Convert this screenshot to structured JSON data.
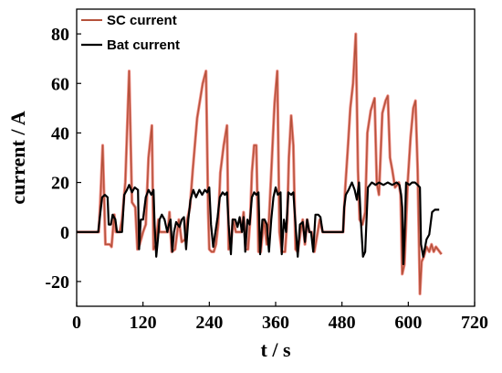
{
  "chart_data": {
    "type": "line",
    "xlabel": "t / s",
    "ylabel": "current / A",
    "xlim": [
      0,
      720
    ],
    "ylim": [
      -30,
      90
    ],
    "x_ticks": [
      "0",
      "120",
      "240",
      "360",
      "480",
      "600",
      "720"
    ],
    "y_ticks": [
      "-20",
      "0",
      "20",
      "40",
      "60",
      "80"
    ],
    "y_tick_values": [
      -20,
      0,
      20,
      40,
      60,
      80
    ],
    "x_tick_values": [
      0,
      120,
      240,
      360,
      480,
      600,
      720
    ],
    "grid": false,
    "legend_position": "top-left",
    "series": [
      {
        "name": "SC current",
        "color": "#b5523b",
        "glow_color": "#e8463a",
        "points": [
          [
            0,
            0
          ],
          [
            40,
            0
          ],
          [
            43,
            13
          ],
          [
            47,
            35
          ],
          [
            52,
            -5
          ],
          [
            56,
            -5
          ],
          [
            60,
            -5
          ],
          [
            63,
            -6
          ],
          [
            68,
            7
          ],
          [
            71,
            0
          ],
          [
            78,
            0
          ],
          [
            82,
            5
          ],
          [
            88,
            20
          ],
          [
            95,
            65
          ],
          [
            100,
            12
          ],
          [
            106,
            10
          ],
          [
            110,
            -7
          ],
          [
            114,
            -5
          ],
          [
            120,
            0
          ],
          [
            125,
            3
          ],
          [
            130,
            30
          ],
          [
            136,
            43
          ],
          [
            139,
            -7
          ],
          [
            143,
            -5
          ],
          [
            148,
            5
          ],
          [
            150,
            0
          ],
          [
            165,
            0
          ],
          [
            168,
            8
          ],
          [
            172,
            -8
          ],
          [
            178,
            -7
          ],
          [
            182,
            0
          ],
          [
            185,
            5
          ],
          [
            190,
            -4
          ],
          [
            196,
            -3
          ],
          [
            200,
            5
          ],
          [
            205,
            10
          ],
          [
            210,
            25
          ],
          [
            218,
            46
          ],
          [
            228,
            60
          ],
          [
            234,
            65
          ],
          [
            238,
            8
          ],
          [
            240,
            -7
          ],
          [
            244,
            -8
          ],
          [
            248,
            -8
          ],
          [
            252,
            -5
          ],
          [
            256,
            3
          ],
          [
            260,
            24
          ],
          [
            266,
            35
          ],
          [
            272,
            43
          ],
          [
            275,
            -7
          ],
          [
            279,
            -5
          ],
          [
            283,
            5
          ],
          [
            288,
            0
          ],
          [
            298,
            0
          ],
          [
            302,
            8
          ],
          [
            306,
            -7
          ],
          [
            310,
            -7
          ],
          [
            314,
            5
          ],
          [
            317,
            24
          ],
          [
            321,
            35
          ],
          [
            325,
            35
          ],
          [
            329,
            -8
          ],
          [
            333,
            -8
          ],
          [
            339,
            5
          ],
          [
            344,
            -5
          ],
          [
            348,
            5
          ],
          [
            352,
            24
          ],
          [
            358,
            52
          ],
          [
            363,
            65
          ],
          [
            367,
            0
          ],
          [
            371,
            -8
          ],
          [
            377,
            -8
          ],
          [
            381,
            5
          ],
          [
            384,
            30
          ],
          [
            388,
            47
          ],
          [
            392,
            35
          ],
          [
            396,
            -7
          ],
          [
            400,
            -8
          ],
          [
            405,
            0
          ],
          [
            409,
            5
          ],
          [
            413,
            -5
          ],
          [
            417,
            5
          ],
          [
            421,
            0
          ],
          [
            425,
            0
          ],
          [
            430,
            -8
          ],
          [
            440,
            5
          ],
          [
            445,
            0
          ],
          [
            482,
            0
          ],
          [
            486,
            18
          ],
          [
            491,
            35
          ],
          [
            495,
            50
          ],
          [
            500,
            60
          ],
          [
            505,
            80
          ],
          [
            509,
            25
          ],
          [
            512,
            5
          ],
          [
            517,
            3
          ],
          [
            522,
            8
          ],
          [
            526,
            40
          ],
          [
            532,
            49
          ],
          [
            539,
            54
          ],
          [
            543,
            20
          ],
          [
            547,
            15
          ],
          [
            553,
            48
          ],
          [
            559,
            53
          ],
          [
            563,
            55
          ],
          [
            567,
            30
          ],
          [
            571,
            25
          ],
          [
            576,
            18
          ],
          [
            583,
            20
          ],
          [
            586,
            15
          ],
          [
            589,
            -17
          ],
          [
            593,
            -13
          ],
          [
            599,
            20
          ],
          [
            604,
            38
          ],
          [
            609,
            50
          ],
          [
            613,
            53
          ],
          [
            617,
            25
          ],
          [
            621,
            -25
          ],
          [
            624,
            -12
          ],
          [
            628,
            -10
          ],
          [
            633,
            -6
          ],
          [
            638,
            -8
          ],
          [
            642,
            -5
          ],
          [
            646,
            -8
          ],
          [
            650,
            -6
          ],
          [
            660,
            -9
          ]
        ]
      },
      {
        "name": "Bat current",
        "color": "#000000",
        "points": [
          [
            0,
            0
          ],
          [
            39,
            0
          ],
          [
            41,
            4
          ],
          [
            46,
            14
          ],
          [
            51,
            15
          ],
          [
            56,
            14
          ],
          [
            58,
            3
          ],
          [
            62,
            3
          ],
          [
            65,
            7
          ],
          [
            70,
            5
          ],
          [
            73,
            0
          ],
          [
            82,
            0
          ],
          [
            86,
            15
          ],
          [
            91,
            17
          ],
          [
            95,
            19
          ],
          [
            100,
            16
          ],
          [
            105,
            18
          ],
          [
            111,
            17
          ],
          [
            113,
            -7
          ],
          [
            116,
            5
          ],
          [
            120,
            5
          ],
          [
            125,
            14
          ],
          [
            130,
            17
          ],
          [
            135,
            15
          ],
          [
            139,
            17
          ],
          [
            141,
            3
          ],
          [
            144,
            -10
          ],
          [
            147,
            -3
          ],
          [
            150,
            5
          ],
          [
            154,
            7
          ],
          [
            159,
            5
          ],
          [
            164,
            0
          ],
          [
            167,
            3
          ],
          [
            170,
            5
          ],
          [
            173,
            -8
          ],
          [
            176,
            0
          ],
          [
            180,
            4
          ],
          [
            186,
            2
          ],
          [
            190,
            5
          ],
          [
            194,
            6
          ],
          [
            198,
            -7
          ],
          [
            202,
            5
          ],
          [
            206,
            13
          ],
          [
            211,
            17
          ],
          [
            216,
            14
          ],
          [
            222,
            17
          ],
          [
            227,
            15
          ],
          [
            232,
            17
          ],
          [
            236,
            16
          ],
          [
            240,
            18
          ],
          [
            243,
            3
          ],
          [
            247,
            -6
          ],
          [
            251,
            0
          ],
          [
            255,
            6
          ],
          [
            259,
            14
          ],
          [
            264,
            16
          ],
          [
            268,
            15
          ],
          [
            272,
            16
          ],
          [
            275,
            3
          ],
          [
            279,
            -9
          ],
          [
            282,
            5
          ],
          [
            287,
            5
          ],
          [
            291,
            2
          ],
          [
            295,
            6
          ],
          [
            299,
            0
          ],
          [
            302,
            6
          ],
          [
            305,
            -8
          ],
          [
            309,
            5
          ],
          [
            313,
            3
          ],
          [
            317,
            14
          ],
          [
            321,
            16
          ],
          [
            325,
            15
          ],
          [
            329,
            16
          ],
          [
            332,
            -9
          ],
          [
            336,
            5
          ],
          [
            340,
            5
          ],
          [
            344,
            3
          ],
          [
            348,
            -8
          ],
          [
            352,
            5
          ],
          [
            356,
            14
          ],
          [
            360,
            18
          ],
          [
            364,
            15
          ],
          [
            369,
            16
          ],
          [
            371,
            -9
          ],
          [
            375,
            5
          ],
          [
            379,
            0
          ],
          [
            383,
            16
          ],
          [
            388,
            15
          ],
          [
            392,
            16
          ],
          [
            396,
            3
          ],
          [
            400,
            -10
          ],
          [
            404,
            3
          ],
          [
            409,
            4
          ],
          [
            413,
            -4
          ],
          [
            417,
            5
          ],
          [
            421,
            0
          ],
          [
            424,
            0
          ],
          [
            428,
            -8
          ],
          [
            432,
            7
          ],
          [
            437,
            7
          ],
          [
            441,
            6
          ],
          [
            445,
            0
          ],
          [
            482,
            0
          ],
          [
            484,
            10
          ],
          [
            487,
            15
          ],
          [
            492,
            17
          ],
          [
            498,
            20
          ],
          [
            503,
            17
          ],
          [
            507,
            13
          ],
          [
            511,
            20
          ],
          [
            514,
            5
          ],
          [
            518,
            -10
          ],
          [
            522,
            -8
          ],
          [
            527,
            18
          ],
          [
            534,
            20
          ],
          [
            541,
            19
          ],
          [
            547,
            20
          ],
          [
            555,
            19
          ],
          [
            563,
            20
          ],
          [
            571,
            19
          ],
          [
            579,
            20
          ],
          [
            584,
            19
          ],
          [
            587,
            15
          ],
          [
            589,
            10
          ],
          [
            591,
            -13
          ],
          [
            593,
            -3
          ],
          [
            596,
            20
          ],
          [
            602,
            19
          ],
          [
            607,
            20
          ],
          [
            612,
            20
          ],
          [
            617,
            19
          ],
          [
            621,
            18
          ],
          [
            623,
            -5
          ],
          [
            627,
            -10
          ],
          [
            633,
            -3
          ],
          [
            638,
            -1
          ],
          [
            643,
            8
          ],
          [
            648,
            9
          ],
          [
            652,
            9
          ],
          [
            656,
            9
          ]
        ]
      }
    ]
  }
}
